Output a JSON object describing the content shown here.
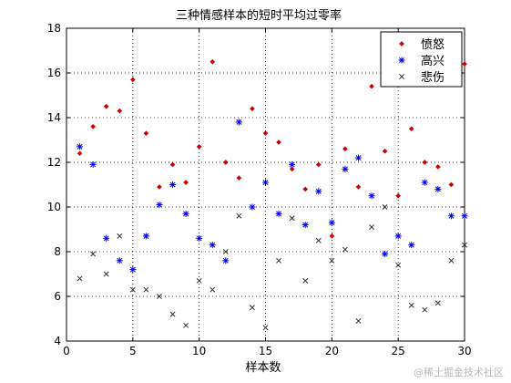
{
  "chart_data": {
    "type": "scatter",
    "title": "三种情感样本的短时平均过零率",
    "xlabel": "样本数",
    "ylabel": "",
    "xlim": [
      0,
      30
    ],
    "ylim": [
      4,
      18
    ],
    "xticks": [
      0,
      5,
      10,
      15,
      20,
      25,
      30
    ],
    "yticks": [
      4,
      6,
      8,
      10,
      12,
      14,
      16,
      18
    ],
    "grid": "dotted",
    "legend_position": "top-right",
    "series": [
      {
        "name": "愤怒",
        "marker": "dot",
        "color": "#cc0000",
        "x": [
          1,
          2,
          3,
          4,
          5,
          6,
          7,
          8,
          9,
          10,
          11,
          12,
          13,
          14,
          15,
          16,
          17,
          18,
          19,
          20,
          21,
          22,
          23,
          24,
          25,
          26,
          27,
          28,
          29,
          30
        ],
        "y": [
          12.4,
          13.6,
          14.5,
          14.3,
          15.7,
          13.3,
          10.9,
          11.9,
          11.1,
          12.7,
          16.5,
          12.0,
          11.3,
          14.4,
          13.3,
          12.9,
          11.7,
          10.8,
          11.9,
          8.7,
          12.6,
          10.9,
          15.4,
          12.5,
          10.5,
          13.5,
          12.0,
          11.8,
          11.0,
          16.4
        ]
      },
      {
        "name": "高兴",
        "marker": "asterisk",
        "color": "#0000ee",
        "x": [
          1,
          2,
          3,
          4,
          5,
          6,
          7,
          8,
          9,
          10,
          11,
          12,
          13,
          14,
          15,
          16,
          17,
          18,
          19,
          20,
          21,
          22,
          23,
          24,
          25,
          26,
          27,
          28,
          29,
          30
        ],
        "y": [
          12.7,
          11.9,
          8.6,
          7.6,
          7.2,
          8.7,
          10.1,
          11.0,
          9.7,
          8.6,
          8.3,
          7.6,
          13.8,
          10.0,
          11.1,
          9.7,
          11.9,
          9.2,
          10.7,
          9.3,
          11.7,
          12.2,
          10.5,
          7.9,
          8.7,
          8.3,
          11.1,
          10.8,
          9.6,
          9.6
        ]
      },
      {
        "name": "悲伤",
        "marker": "x",
        "color": "#333333",
        "x": [
          1,
          2,
          3,
          4,
          5,
          6,
          7,
          8,
          9,
          10,
          11,
          12,
          13,
          14,
          15,
          16,
          17,
          18,
          19,
          20,
          21,
          22,
          23,
          24,
          25,
          26,
          27,
          28,
          29,
          30
        ],
        "y": [
          6.8,
          7.9,
          7.0,
          8.7,
          6.3,
          6.3,
          6.0,
          5.2,
          4.7,
          6.7,
          6.3,
          8.0,
          9.6,
          5.5,
          4.6,
          7.6,
          9.5,
          6.7,
          8.5,
          7.6,
          8.1,
          4.9,
          9.1,
          10.0,
          7.4,
          5.6,
          5.4,
          5.7,
          7.6,
          8.3
        ]
      }
    ]
  },
  "watermark": "@稀土掘金技术社区"
}
